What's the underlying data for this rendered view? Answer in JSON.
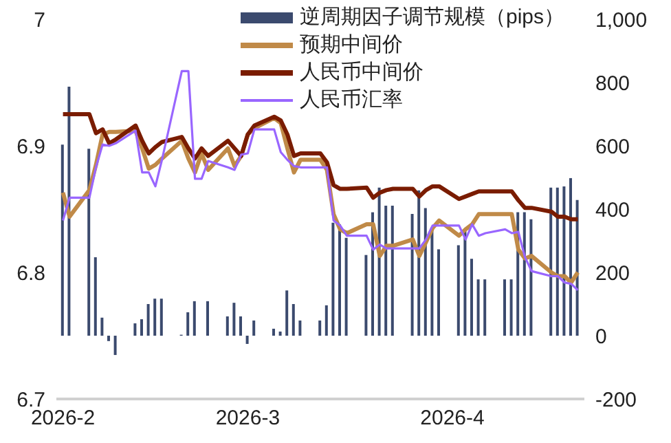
{
  "chart_data": {
    "type": "line",
    "legend": "top right",
    "grid": false,
    "marker": "none",
    "x": [
      "2026-02-01",
      "2026-02-02",
      "2026-02-05",
      "2026-02-06",
      "2026-02-07",
      "2026-02-08",
      "2026-02-09",
      "2026-02-12",
      "2026-02-13",
      "2026-02-14",
      "2026-02-15",
      "2026-02-16",
      "2026-02-19",
      "2026-02-20",
      "2026-02-21",
      "2026-02-22",
      "2026-02-23",
      "2026-02-26",
      "2026-02-27",
      "2026-02-28",
      "2026-03-01",
      "2026-03-02",
      "2026-03-05",
      "2026-03-06",
      "2026-03-07",
      "2026-03-08",
      "2026-03-09",
      "2026-03-12",
      "2026-03-13",
      "2026-03-14",
      "2026-03-15",
      "2026-03-16",
      "2026-03-19",
      "2026-03-20",
      "2026-03-21",
      "2026-03-22",
      "2026-03-23",
      "2026-03-26",
      "2026-03-27",
      "2026-03-28",
      "2026-03-29",
      "2026-03-30",
      "2026-04-02",
      "2026-04-03",
      "2026-04-04",
      "2026-04-05",
      "2026-04-06",
      "2026-04-09",
      "2026-04-10",
      "2026-04-11",
      "2026-04-12",
      "2026-04-13",
      "2026-04-16",
      "2026-04-17",
      "2026-04-18",
      "2026-04-19",
      "2026-04-20"
    ],
    "xlim": [
      "2026-01-31",
      "2026-04-21"
    ],
    "xticks": [
      {
        "value": "2026-02-01",
        "label": "2026-2"
      },
      {
        "value": "2026-03-01",
        "label": "2026-3"
      },
      {
        "value": "2026-04-01",
        "label": "2026-4"
      }
    ],
    "ylim": [
      6.7,
      7
    ],
    "yticks": [
      6.7,
      6.8,
      6.9,
      7
    ],
    "y2lim": [
      -200,
      1000
    ],
    "y2ticks": [
      -200,
      0,
      200,
      400,
      600,
      800,
      {
        "value": 1000,
        "label": "1,000"
      }
    ],
    "series": [
      {
        "name": "逆周期因子调节规模（pips）",
        "type": "bar",
        "axis": "y2",
        "color": "#3b4a6e",
        "values": [
          604,
          787,
          591,
          248,
          57,
          -17,
          -61,
          39,
          52,
          100,
          117,
          117,
          3,
          74,
          109,
          null,
          109,
          61,
          104,
          61,
          -26,
          48,
          22,
          13,
          143,
          100,
          48,
          48,
          96,
          357,
          352,
          309,
          255,
          390,
          468,
          411,
          411,
          385,
          459,
          403,
          333,
          273,
          286,
          338,
          243,
          178,
          178,
          178,
          178,
          390,
          390,
          368,
          468,
          468,
          472,
          498,
          429
        ]
      },
      {
        "name": "预期中间价",
        "color": "#c08a48",
        "values": [
          6.863,
          6.844,
          6.865,
          6.885,
          6.909,
          6.911,
          6.911,
          6.912,
          6.898,
          6.882,
          6.885,
          6.89,
          6.904,
          6.89,
          6.879,
          6.894,
          6.881,
          6.898,
          6.884,
          6.892,
          6.909,
          6.914,
          6.922,
          6.918,
          6.898,
          6.879,
          6.889,
          6.889,
          6.881,
          6.846,
          6.834,
          6.831,
          6.838,
          6.838,
          6.813,
          6.821,
          6.821,
          6.826,
          6.813,
          6.824,
          6.835,
          6.841,
          6.829,
          6.834,
          6.838,
          6.846,
          6.846,
          6.846,
          6.846,
          6.818,
          6.811,
          6.813,
          6.8,
          6.797,
          6.797,
          6.792,
          6.8
        ]
      },
      {
        "name": "人民币中间价",
        "color": "#7a1c00",
        "values": [
          6.925,
          6.925,
          6.925,
          6.91,
          6.913,
          6.902,
          6.905,
          6.916,
          6.904,
          6.894,
          6.899,
          6.903,
          6.907,
          6.898,
          6.89,
          6.898,
          6.892,
          6.904,
          6.898,
          6.892,
          6.909,
          6.916,
          6.923,
          6.92,
          6.909,
          6.892,
          6.894,
          6.894,
          6.887,
          6.869,
          6.866,
          6.866,
          6.867,
          6.859,
          6.863,
          6.865,
          6.866,
          6.866,
          6.86,
          6.865,
          6.868,
          6.868,
          6.858,
          6.86,
          6.862,
          6.864,
          6.864,
          6.864,
          6.864,
          6.857,
          6.851,
          6.851,
          6.848,
          6.844,
          6.844,
          6.842,
          6.842
        ]
      },
      {
        "name": "人民币汇率",
        "color": "#9966ff",
        "values": [
          6.841,
          6.859,
          6.859,
          6.883,
          6.901,
          6.9,
          6.902,
          6.912,
          6.879,
          6.879,
          6.868,
          6.889,
          6.959,
          6.959,
          6.874,
          6.874,
          6.888,
          6.883,
          6.881,
          6.893,
          6.894,
          6.913,
          6.913,
          6.895,
          6.889,
          6.884,
          6.883,
          6.883,
          6.883,
          6.841,
          6.837,
          6.829,
          6.829,
          6.818,
          6.822,
          6.819,
          6.819,
          6.819,
          6.819,
          6.826,
          6.837,
          6.837,
          6.837,
          6.826,
          6.838,
          6.829,
          6.831,
          6.834,
          6.831,
          6.832,
          6.812,
          6.801,
          6.797,
          6.797,
          6.792,
          6.791,
          6.786
        ]
      }
    ]
  }
}
